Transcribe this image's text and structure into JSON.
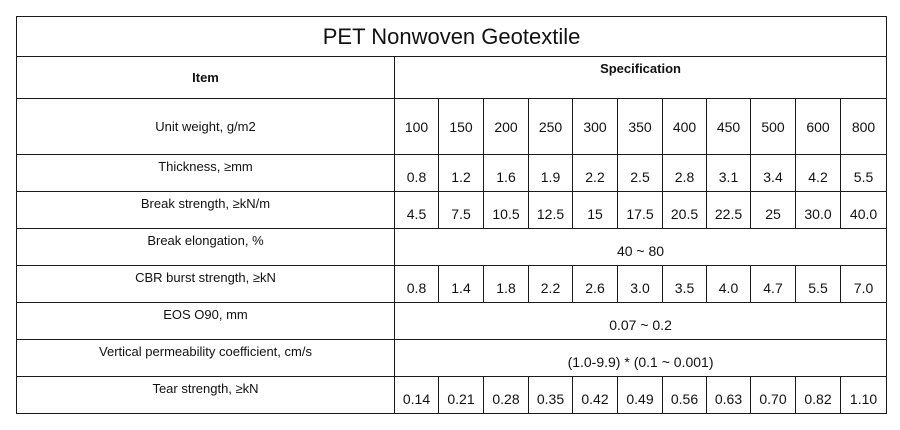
{
  "table": {
    "title": "PET Nonwoven Geotextile",
    "header_item": "Item",
    "header_spec": "Specification",
    "rows": [
      {
        "label": "Unit weight, g/m2",
        "values": [
          "100",
          "150",
          "200",
          "250",
          "300",
          "350",
          "400",
          "450",
          "500",
          "600",
          "800"
        ]
      },
      {
        "label": "Thickness, ≥mm",
        "values": [
          "0.8",
          "1.2",
          "1.6",
          "1.9",
          "2.2",
          "2.5",
          "2.8",
          "3.1",
          "3.4",
          "4.2",
          "5.5"
        ]
      },
      {
        "label": "Break strength, ≥kN/m",
        "values": [
          "4.5",
          "7.5",
          "10.5",
          "12.5",
          "15",
          "17.5",
          "20.5",
          "22.5",
          "25",
          "30.0",
          "40.0"
        ]
      },
      {
        "label": "Break elongation, %",
        "span": "40 ~ 80"
      },
      {
        "label": "CBR burst strength, ≥kN",
        "values": [
          "0.8",
          "1.4",
          "1.8",
          "2.2",
          "2.6",
          "3.0",
          "3.5",
          "4.0",
          "4.7",
          "5.5",
          "7.0"
        ]
      },
      {
        "label": "EOS O90, mm",
        "span": "0.07 ~ 0.2"
      },
      {
        "label": "Vertical permeability coefficient, cm/s",
        "span": "(1.0-9.9) * (0.1 ~ 0.001)"
      },
      {
        "label": "Tear strength, ≥kN",
        "values": [
          "0.14",
          "0.21",
          "0.28",
          "0.35",
          "0.42",
          "0.49",
          "0.56",
          "0.63",
          "0.70",
          "0.82",
          "1.10"
        ]
      }
    ]
  }
}
